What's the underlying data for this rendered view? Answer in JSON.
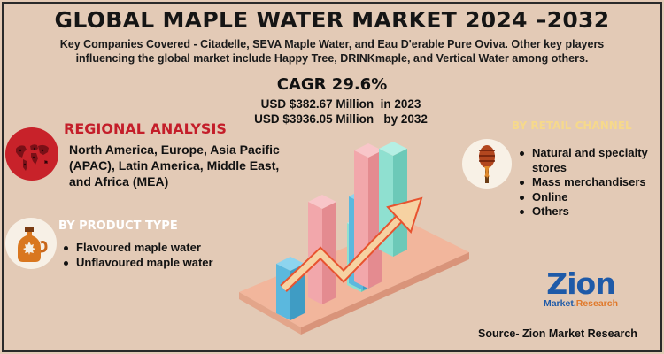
{
  "title": "GLOBAL MAPLE WATER MARKET 2024 –2032",
  "subtitle": "Key Companies Covered - Citadelle, SEVA Maple Water, and Eau D'erable Pure Oviva. Other key players influencing the global market include Happy Tree, DRINKmaple, and Vertical Water among others.",
  "cagr": "CAGR 29.6%",
  "market": {
    "value_2023": "USD $382.67 Million  in 2023",
    "value_2032": "USD $3936.05 Million   by 2032"
  },
  "regional": {
    "title": "REGIONAL ANALYSIS",
    "text": "North America, Europe, Asia Pacific (APAC), Latin America, Middle East, and Africa (MEA)",
    "icon": "world-map-icon"
  },
  "product": {
    "title": "BY PRODUCT TYPE",
    "items": [
      "Flavoured maple water",
      "Unflavoured maple water"
    ],
    "icon": "maple-syrup-bottle-icon"
  },
  "retail": {
    "title": "BY RETAIL CHANNEL",
    "items": [
      "Natural and specialty stores",
      "Mass merchandisers",
      "Online",
      "Others"
    ],
    "icon": "honey-dipper-icon"
  },
  "logo": {
    "name": "Zion",
    "sub_a": "Market.",
    "sub_b": "Research"
  },
  "source": "Source- Zion Market Research",
  "colors": {
    "background": "#e3cab6",
    "regional_title": "#c41e2a",
    "bar_blue": "#5bb8de",
    "bar_pink": "#f2a7ab",
    "bar_teal": "#8fe0d0",
    "arrow": "#f6d2a2",
    "logo_blue": "#1e5aa8"
  }
}
